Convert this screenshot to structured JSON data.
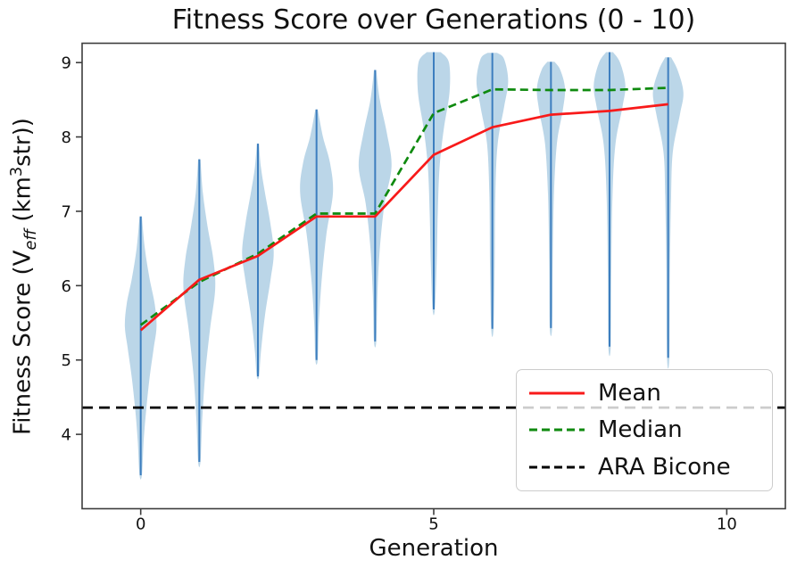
{
  "title": "Fitness Score over Generations (0 - 10)",
  "xlabel": "Generation",
  "ylabel": {
    "prefix": "Fitness Score (V",
    "sub": "eff",
    "mid": " (km",
    "sup": "3",
    "suffix": "str))"
  },
  "chart_data": {
    "type": "violin",
    "title": "Fitness Score over Generations (0 - 10)",
    "xlabel": "Generation",
    "ylabel": "Fitness Score (V_eff (km^3 str))",
    "categories": [
      0,
      1,
      2,
      3,
      4,
      5,
      6,
      7,
      8,
      9
    ],
    "axes": {
      "xlim": [
        -1,
        11
      ],
      "ylim": [
        3.0,
        9.26
      ],
      "xticks": [
        0,
        5,
        10
      ],
      "yticks": [
        4,
        5,
        6,
        7,
        8,
        9
      ],
      "grid": false,
      "legend_position": "lower right"
    },
    "series": [
      {
        "name": "Mean",
        "type": "line",
        "color": "#f81a1a",
        "dash": null,
        "values": [
          5.4,
          6.08,
          6.4,
          6.93,
          6.93,
          7.76,
          8.13,
          8.3,
          8.35,
          8.44
        ]
      },
      {
        "name": "Median",
        "type": "line",
        "color": "#0f8a0f",
        "dash": "9,5",
        "values": [
          5.47,
          6.05,
          6.43,
          6.97,
          6.97,
          8.32,
          8.64,
          8.63,
          8.63,
          8.66
        ]
      }
    ],
    "reference_line": {
      "name": "ARA Bicone",
      "value": 4.36,
      "color": "#000000",
      "dash": "12,7"
    },
    "violins": [
      {
        "x": 0,
        "min": 3.45,
        "max": 6.93,
        "profile": [
          [
            3.45,
            0.02
          ],
          [
            3.9,
            0.05
          ],
          [
            4.3,
            0.09
          ],
          [
            4.75,
            0.15
          ],
          [
            5.15,
            0.22
          ],
          [
            5.45,
            0.27
          ],
          [
            5.75,
            0.24
          ],
          [
            6.1,
            0.15
          ],
          [
            6.5,
            0.07
          ],
          [
            6.93,
            0.02
          ]
        ]
      },
      {
        "x": 1,
        "min": 3.63,
        "max": 7.7,
        "profile": [
          [
            3.63,
            0.02
          ],
          [
            4.2,
            0.05
          ],
          [
            4.8,
            0.1
          ],
          [
            5.4,
            0.18
          ],
          [
            5.95,
            0.27
          ],
          [
            6.35,
            0.24
          ],
          [
            6.8,
            0.14
          ],
          [
            7.25,
            0.06
          ],
          [
            7.7,
            0.02
          ]
        ]
      },
      {
        "x": 2,
        "min": 4.78,
        "max": 7.91,
        "profile": [
          [
            4.78,
            0.02
          ],
          [
            5.1,
            0.05
          ],
          [
            5.6,
            0.12
          ],
          [
            6.1,
            0.22
          ],
          [
            6.45,
            0.27
          ],
          [
            6.85,
            0.21
          ],
          [
            7.25,
            0.12
          ],
          [
            7.6,
            0.05
          ],
          [
            7.91,
            0.02
          ]
        ]
      },
      {
        "x": 3,
        "min": 5.0,
        "max": 8.37,
        "profile": [
          [
            5.0,
            0.02
          ],
          [
            5.5,
            0.04
          ],
          [
            6.1,
            0.09
          ],
          [
            6.7,
            0.17
          ],
          [
            7.25,
            0.28
          ],
          [
            7.65,
            0.23
          ],
          [
            8.0,
            0.11
          ],
          [
            8.37,
            0.02
          ]
        ]
      },
      {
        "x": 4,
        "min": 5.25,
        "max": 8.9,
        "profile": [
          [
            5.25,
            0.02
          ],
          [
            5.9,
            0.04
          ],
          [
            6.5,
            0.08
          ],
          [
            7.1,
            0.16
          ],
          [
            7.6,
            0.28
          ],
          [
            8.05,
            0.2
          ],
          [
            8.5,
            0.08
          ],
          [
            8.9,
            0.02
          ]
        ]
      },
      {
        "x": 5,
        "min": 5.68,
        "max": 9.14,
        "profile": [
          [
            5.68,
            0.02
          ],
          [
            6.3,
            0.05
          ],
          [
            7.0,
            0.07
          ],
          [
            7.6,
            0.1
          ],
          [
            8.1,
            0.17
          ],
          [
            8.6,
            0.27
          ],
          [
            9.0,
            0.26
          ],
          [
            9.14,
            0.12
          ]
        ]
      },
      {
        "x": 6,
        "min": 5.42,
        "max": 9.13,
        "profile": [
          [
            5.42,
            0.02
          ],
          [
            6.3,
            0.04
          ],
          [
            7.2,
            0.05
          ],
          [
            7.9,
            0.09
          ],
          [
            8.4,
            0.2
          ],
          [
            8.75,
            0.27
          ],
          [
            9.05,
            0.2
          ],
          [
            9.13,
            0.08
          ]
        ]
      },
      {
        "x": 7,
        "min": 5.43,
        "max": 9.01,
        "profile": [
          [
            5.43,
            0.02
          ],
          [
            6.3,
            0.03
          ],
          [
            7.2,
            0.05
          ],
          [
            7.9,
            0.1
          ],
          [
            8.35,
            0.2
          ],
          [
            8.65,
            0.24
          ],
          [
            8.9,
            0.16
          ],
          [
            9.01,
            0.06
          ]
        ]
      },
      {
        "x": 8,
        "min": 5.18,
        "max": 9.14,
        "profile": [
          [
            5.18,
            0.02
          ],
          [
            6.2,
            0.03
          ],
          [
            7.2,
            0.05
          ],
          [
            7.9,
            0.1
          ],
          [
            8.4,
            0.22
          ],
          [
            8.7,
            0.27
          ],
          [
            9.0,
            0.18
          ],
          [
            9.14,
            0.06
          ]
        ]
      },
      {
        "x": 9,
        "min": 5.03,
        "max": 9.07,
        "profile": [
          [
            5.03,
            0.02
          ],
          [
            6.2,
            0.03
          ],
          [
            7.2,
            0.05
          ],
          [
            7.8,
            0.08
          ],
          [
            8.3,
            0.2
          ],
          [
            8.6,
            0.26
          ],
          [
            8.9,
            0.16
          ],
          [
            9.07,
            0.05
          ]
        ]
      }
    ],
    "style": {
      "violin_fill": "rgba(31,119,180,0.30)",
      "violin_line": "#3d7ebf",
      "spine_color": "#3d3d3d",
      "tick_color": "#3d3d3d"
    },
    "legend": {
      "entries": [
        {
          "label": "Mean",
          "color": "#f81a1a",
          "dash": null
        },
        {
          "label": "Median",
          "color": "#0f8a0f",
          "dash": "9,5"
        },
        {
          "label": "ARA Bicone",
          "color": "#000000",
          "dash": "9,5"
        }
      ]
    }
  }
}
